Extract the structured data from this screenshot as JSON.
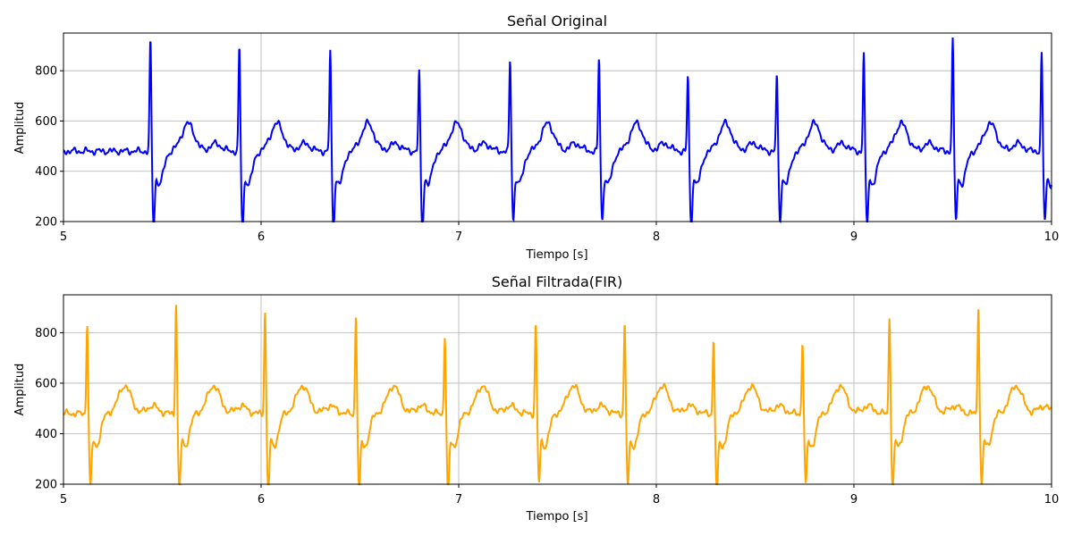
{
  "chart_data": [
    {
      "type": "line",
      "title": "Señal Original",
      "xlabel": "Tiempo [s]",
      "ylabel": "Amplitud",
      "xlim": [
        5,
        10
      ],
      "ylim": [
        200,
        950
      ],
      "xticks": [
        5,
        6,
        7,
        8,
        9,
        10
      ],
      "xtick_labels": [
        "5",
        "6",
        "7",
        "8",
        "9",
        "10"
      ],
      "yticks": [
        200,
        400,
        600,
        800
      ],
      "ytick_labels": [
        "200",
        "400",
        "600",
        "800"
      ],
      "grid": true,
      "color": "#0000ff",
      "beats": [
        {
          "r_time": 5.44,
          "r_peak": 950,
          "s_min": 220
        },
        {
          "r_time": 5.89,
          "r_peak": 920,
          "s_min": 205
        },
        {
          "r_time": 6.35,
          "r_peak": 910,
          "s_min": 205
        },
        {
          "r_time": 6.8,
          "r_peak": 820,
          "s_min": 195
        },
        {
          "r_time": 7.26,
          "r_peak": 870,
          "s_min": 250
        },
        {
          "r_time": 7.71,
          "r_peak": 875,
          "s_min": 245
        },
        {
          "r_time": 8.16,
          "r_peak": 808,
          "s_min": 210
        },
        {
          "r_time": 8.61,
          "r_peak": 808,
          "s_min": 245
        },
        {
          "r_time": 9.05,
          "r_peak": 900,
          "s_min": 225
        },
        {
          "r_time": 9.5,
          "r_peak": 955,
          "s_min": 250
        },
        {
          "r_time": 9.95,
          "r_peak": 890,
          "s_min": 245
        }
      ]
    },
    {
      "type": "line",
      "title": "Señal Filtrada(FIR)",
      "xlabel": "Tiempo [s]",
      "ylabel": "Amplitud",
      "xlim": [
        5,
        10
      ],
      "ylim": [
        200,
        950
      ],
      "xticks": [
        5,
        6,
        7,
        8,
        9,
        10
      ],
      "xtick_labels": [
        "5",
        "6",
        "7",
        "8",
        "9",
        "10"
      ],
      "yticks": [
        200,
        400,
        600,
        800
      ],
      "ytick_labels": [
        "200",
        "400",
        "600",
        "800"
      ],
      "grid": true,
      "color": "#ffa500",
      "beats": [
        {
          "r_time": 5.12,
          "r_peak": 865,
          "s_min": 225
        },
        {
          "r_time": 5.57,
          "r_peak": 950,
          "s_min": 215
        },
        {
          "r_time": 6.02,
          "r_peak": 920,
          "s_min": 200
        },
        {
          "r_time": 6.48,
          "r_peak": 895,
          "s_min": 205
        },
        {
          "r_time": 6.93,
          "r_peak": 820,
          "s_min": 195
        },
        {
          "r_time": 7.39,
          "r_peak": 865,
          "s_min": 250
        },
        {
          "r_time": 7.84,
          "r_peak": 865,
          "s_min": 235
        },
        {
          "r_time": 8.29,
          "r_peak": 798,
          "s_min": 200
        },
        {
          "r_time": 8.74,
          "r_peak": 795,
          "s_min": 235
        },
        {
          "r_time": 9.18,
          "r_peak": 890,
          "s_min": 215
        },
        {
          "r_time": 9.63,
          "r_peak": 935,
          "s_min": 235
        }
      ]
    }
  ]
}
